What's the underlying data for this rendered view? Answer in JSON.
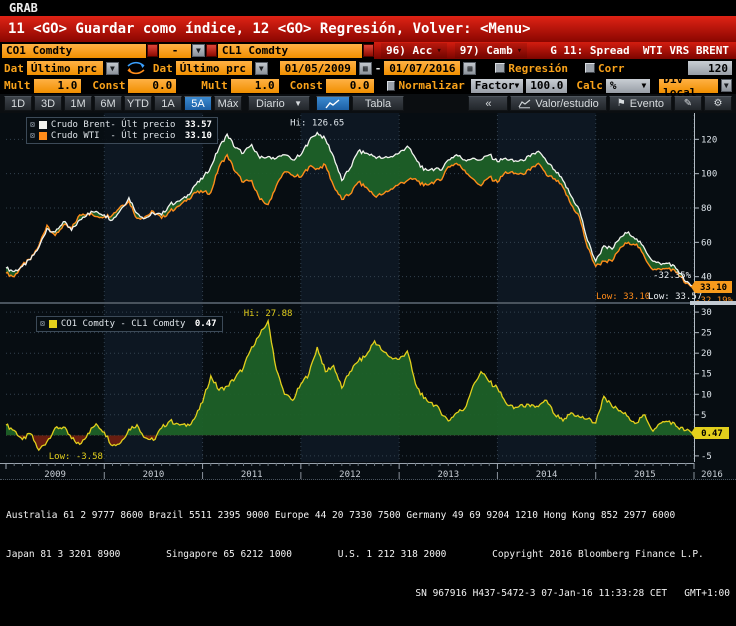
{
  "window": {
    "grab": "GRAB"
  },
  "menubar": {
    "message": "11 <GO> Guardar como índice, 12 <GO> Regresión, Volver: <Menu>",
    "acc_button": "96) Acc",
    "camb_button": "97) Camb",
    "chart_title": "G 11: Spread  WTI VRS BRENT"
  },
  "security_row": {
    "security1": "CO1 Comdty",
    "operator": "-",
    "security2": "CL1 Comdty"
  },
  "field_row": {
    "dat1_label": "Dat",
    "price_type1": "Último prc",
    "dat2_label": "Dat",
    "price_type2": "Último prc",
    "date_from": "01/05/2009",
    "date_separator": "-",
    "date_to": "01/07/2016",
    "regression_label": "Regresión",
    "corr_label": "Corr",
    "corr_window": "120"
  },
  "mult_row": {
    "mult1_label": "Mult",
    "mult1": "1.0",
    "const1_label": "Const",
    "const1": "0.0",
    "mult2_label": "Mult",
    "mult2": "1.0",
    "const2_label": "Const",
    "const2": "0.0",
    "normalize_label": "Normalizar",
    "factor_label": "Factor",
    "factor_value": "100.0",
    "calc_label": "Calc",
    "calc_unit": "%",
    "div_label": "Div local"
  },
  "toolbar": {
    "periods": [
      "1D",
      "3D",
      "1M",
      "6M",
      "YTD",
      "1A",
      "5A",
      "Máx"
    ],
    "active_period": "5A",
    "frequency": "Diario",
    "table_label": "Tabla",
    "collapse_label": "«",
    "study_label": "Valor/estudio",
    "event_label": "Evento"
  },
  "icons": [
    "swap-arrows-icon",
    "calendar-icon",
    "dropdown-caret-icon",
    "line-chart-icon",
    "mini-chart-icon",
    "flag-icon",
    "pencil-icon",
    "gear-icon"
  ],
  "colors": {
    "orange_field": "#f89a1c",
    "amber_label": "#f9a21a",
    "red_bar": "#b30d02",
    "active_blue": "#2277c4",
    "brent_line": "#f2f3ef",
    "wti_line": "#ff8c1a",
    "spread_line": "#e3cf1c",
    "fill_green": "#1e6128",
    "fill_maroon": "#6e1d10"
  },
  "xaxis": {
    "years": [
      "2009",
      "2010",
      "2011",
      "2012",
      "2013",
      "2014",
      "2015",
      "2016"
    ]
  },
  "chart_data": [
    {
      "type": "line",
      "panel": "price",
      "x_unit": "month",
      "x_start": "2009-01",
      "x_end": "2016-01",
      "ylim": [
        27,
        133
      ],
      "yticks": [
        40,
        60,
        80,
        100,
        120
      ],
      "grid": true,
      "legend_position": "top-left",
      "fill_between_color": "#1e6128",
      "series": [
        {
          "name": "Crudo Brent- Últ precio",
          "last_label": "33.57",
          "color": "#f2f3ef",
          "values": [
            45,
            43,
            46,
            50,
            57,
            68,
            66,
            72,
            67,
            73,
            77,
            78,
            76,
            73,
            79,
            86,
            77,
            74,
            77,
            76,
            82,
            84,
            86,
            93,
            97,
            104,
            115,
            123,
            115,
            112,
            117,
            109,
            110,
            109,
            111,
            108,
            111,
            119,
            124,
            120,
            110,
            96,
            103,
            113,
            112,
            110,
            109,
            110,
            112,
            116,
            109,
            102,
            103,
            102,
            108,
            111,
            108,
            109,
            108,
            111,
            107,
            109,
            107,
            108,
            110,
            113,
            107,
            102,
            96,
            87,
            79,
            61,
            49,
            58,
            56,
            63,
            66,
            62,
            56,
            49,
            47,
            48,
            44,
            37,
            33.57
          ]
        },
        {
          "name": "Crudo WTI  - Últ precio",
          "last_label": "33.10",
          "color": "#ff8c1a",
          "values": [
            42,
            40,
            47,
            50,
            58,
            70,
            64,
            70,
            68,
            76,
            77,
            75,
            75,
            76,
            81,
            84,
            74,
            75,
            78,
            74,
            78,
            81,
            84,
            89,
            89,
            89,
            104,
            111,
            101,
            95,
            96,
            85,
            82,
            93,
            101,
            99,
            98,
            104,
            103,
            105,
            93,
            85,
            88,
            95,
            92,
            87,
            88,
            91,
            94,
            96,
            97,
            93,
            95,
            96,
            104,
            106,
            102,
            97,
            93,
            98,
            95,
            101,
            100,
            100,
            102,
            106,
            99,
            97,
            92,
            82,
            75,
            57,
            46,
            49,
            49,
            57,
            60,
            59,
            51,
            44,
            44,
            45,
            42,
            36,
            33.1
          ]
        }
      ],
      "annotations": {
        "hi": "Hi: 126.65",
        "low_wti": "Low: 33.10",
        "low_brent": "Low: 33.57",
        "pct_brent": "-32.35%",
        "pct_wti": "-32.19%",
        "axis_badge": "33.10"
      }
    },
    {
      "type": "line",
      "panel": "spread",
      "x_unit": "month",
      "x_start": "2009-01",
      "x_end": "2016-01",
      "ylim": [
        -6,
        31
      ],
      "yticks": [
        30,
        25,
        20,
        15,
        10,
        5,
        0,
        -5
      ],
      "grid": true,
      "fill_positive_color": "#1e6128",
      "fill_negative_color": "#6e1d10",
      "series": [
        {
          "name": "CO1 Comdty - CL1 Comdty",
          "last_label": "0.47",
          "color": "#e3cf1c",
          "values": [
            2.5,
            1.2,
            -1,
            0.4,
            -3.58,
            -1.5,
            1.8,
            2,
            -0.8,
            -2.2,
            0.5,
            2.8,
            0.8,
            -2.5,
            -1.8,
            1.5,
            2.6,
            -0.6,
            -1.2,
            1.8,
            3.5,
            2.8,
            2.2,
            4,
            8,
            14.5,
            11,
            12,
            14,
            16.5,
            21.5,
            24.5,
            27.88,
            16,
            10,
            8.5,
            12.5,
            15,
            21.5,
            15.5,
            17,
            11.5,
            15.5,
            18,
            19.5,
            23,
            20.5,
            19,
            18.5,
            20.5,
            12.5,
            9,
            8,
            6,
            3.5,
            5.5,
            6.5,
            12,
            15.5,
            13,
            11.5,
            8,
            6.5,
            7.5,
            7,
            7,
            8.5,
            5,
            3.5,
            5.5,
            4.5,
            4,
            3,
            9.5,
            7,
            6,
            4.5,
            3,
            5,
            1,
            3,
            3.5,
            2,
            1.2,
            0.47
          ]
        }
      ],
      "annotations": {
        "hi": "Hi: 27.88",
        "low": "Low: -3.58",
        "axis_badge": "0.47"
      }
    }
  ],
  "footer": {
    "line1": "Australia 61 2 9777 8600 Brazil 5511 2395 9000 Europe 44 20 7330 7500 Germany 49 69 9204 1210 Hong Kong 852 2977 6000",
    "line2": "Japan 81 3 3201 8900        Singapore 65 6212 1000        U.S. 1 212 318 2000        Copyright 2016 Bloomberg Finance L.P.",
    "line3": "SN 967916 H437-5472-3 07-Jan-16 11:33:28 CET   GMT+1:00"
  }
}
